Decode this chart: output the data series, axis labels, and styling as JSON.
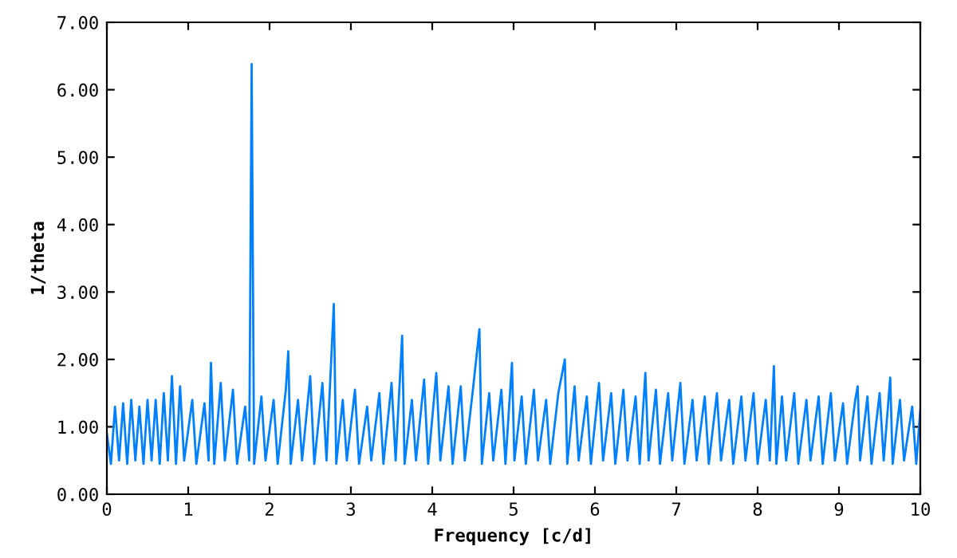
{
  "chart_data": {
    "type": "line",
    "xlabel": "Frequency [c/d]",
    "ylabel": "1/theta",
    "xlim": [
      0,
      10
    ],
    "ylim": [
      0,
      7
    ],
    "xticks": [
      0,
      1,
      2,
      3,
      4,
      5,
      6,
      7,
      8,
      9,
      10
    ],
    "yticks": [
      {
        "value": 0,
        "label": "0.00"
      },
      {
        "value": 1,
        "label": "1.00"
      },
      {
        "value": 2,
        "label": "2.00"
      },
      {
        "value": 3,
        "label": "3.00"
      },
      {
        "value": 4,
        "label": "4.00"
      },
      {
        "value": 5,
        "label": "5.00"
      },
      {
        "value": 6,
        "label": "6.00"
      },
      {
        "value": 7,
        "label": "7.00"
      }
    ],
    "grid": false,
    "legend": false,
    "marker": "none",
    "line_style": "solid",
    "series": [
      {
        "color": "#0080ff",
        "x": [
          0,
          0.05,
          0.1,
          0.15,
          0.2,
          0.25,
          0.3,
          0.35,
          0.4,
          0.45,
          0.5,
          0.55,
          0.6,
          0.65,
          0.7,
          0.75,
          0.8,
          0.85,
          0.9,
          0.95,
          1.05,
          1.1,
          1.2,
          1.25,
          1.28,
          1.32,
          1.4,
          1.45,
          1.55,
          1.6,
          1.7,
          1.75,
          1.78,
          1.81,
          1.9,
          1.95,
          2.05,
          2.1,
          2.2,
          2.23,
          2.26,
          2.35,
          2.4,
          2.5,
          2.55,
          2.65,
          2.7,
          2.79,
          2.82,
          2.9,
          2.95,
          3.05,
          3.1,
          3.2,
          3.25,
          3.35,
          3.4,
          3.5,
          3.55,
          3.63,
          3.66,
          3.75,
          3.8,
          3.9,
          3.95,
          4.05,
          4.1,
          4.2,
          4.25,
          4.35,
          4.4,
          4.5,
          4.58,
          4.61,
          4.7,
          4.75,
          4.85,
          4.9,
          4.98,
          5.01,
          5.1,
          5.15,
          5.25,
          5.3,
          5.4,
          5.45,
          5.55,
          5.63,
          5.66,
          5.75,
          5.8,
          5.9,
          5.95,
          6.05,
          6.1,
          6.2,
          6.25,
          6.35,
          6.4,
          6.5,
          6.55,
          6.62,
          6.66,
          6.75,
          6.8,
          6.9,
          6.95,
          7.05,
          7.1,
          7.2,
          7.25,
          7.35,
          7.4,
          7.5,
          7.55,
          7.65,
          7.7,
          7.8,
          7.85,
          7.95,
          8.0,
          8.1,
          8.15,
          8.2,
          8.23,
          8.3,
          8.35,
          8.45,
          8.5,
          8.6,
          8.65,
          8.75,
          8.8,
          8.9,
          8.95,
          9.05,
          9.1,
          9.2,
          9.23,
          9.26,
          9.35,
          9.4,
          9.5,
          9.55,
          9.63,
          9.66,
          9.75,
          9.8,
          9.9,
          9.95,
          10
        ],
        "values": [
          0.9,
          0.45,
          1.3,
          0.5,
          1.35,
          0.45,
          1.4,
          0.5,
          1.3,
          0.45,
          1.4,
          0.5,
          1.4,
          0.45,
          1.5,
          0.5,
          1.75,
          0.45,
          1.6,
          0.5,
          1.4,
          0.45,
          1.35,
          0.5,
          1.95,
          0.45,
          1.65,
          0.5,
          1.55,
          0.45,
          1.3,
          0.5,
          6.38,
          0.45,
          1.45,
          0.5,
          1.4,
          0.45,
          1.55,
          2.12,
          0.45,
          1.4,
          0.5,
          1.75,
          0.45,
          1.65,
          0.5,
          2.82,
          0.45,
          1.4,
          0.5,
          1.55,
          0.45,
          1.3,
          0.5,
          1.5,
          0.45,
          1.65,
          0.5,
          2.35,
          0.45,
          1.4,
          0.5,
          1.7,
          0.45,
          1.8,
          0.5,
          1.6,
          0.45,
          1.6,
          0.5,
          1.55,
          2.45,
          0.45,
          1.5,
          0.5,
          1.55,
          0.45,
          1.95,
          0.5,
          1.45,
          0.45,
          1.55,
          0.5,
          1.4,
          0.45,
          1.5,
          2.0,
          0.45,
          1.6,
          0.5,
          1.45,
          0.45,
          1.65,
          0.5,
          1.5,
          0.45,
          1.55,
          0.5,
          1.45,
          0.45,
          1.8,
          0.5,
          1.55,
          0.45,
          1.5,
          0.5,
          1.65,
          0.45,
          1.4,
          0.5,
          1.45,
          0.45,
          1.5,
          0.5,
          1.4,
          0.45,
          1.45,
          0.5,
          1.5,
          0.45,
          1.4,
          0.5,
          1.9,
          0.45,
          1.45,
          0.5,
          1.5,
          0.45,
          1.4,
          0.5,
          1.45,
          0.45,
          1.5,
          0.5,
          1.35,
          0.45,
          1.4,
          1.6,
          0.5,
          1.45,
          0.45,
          1.5,
          0.5,
          1.73,
          0.45,
          1.4,
          0.5,
          1.3,
          0.45,
          1.25
        ]
      }
    ]
  }
}
